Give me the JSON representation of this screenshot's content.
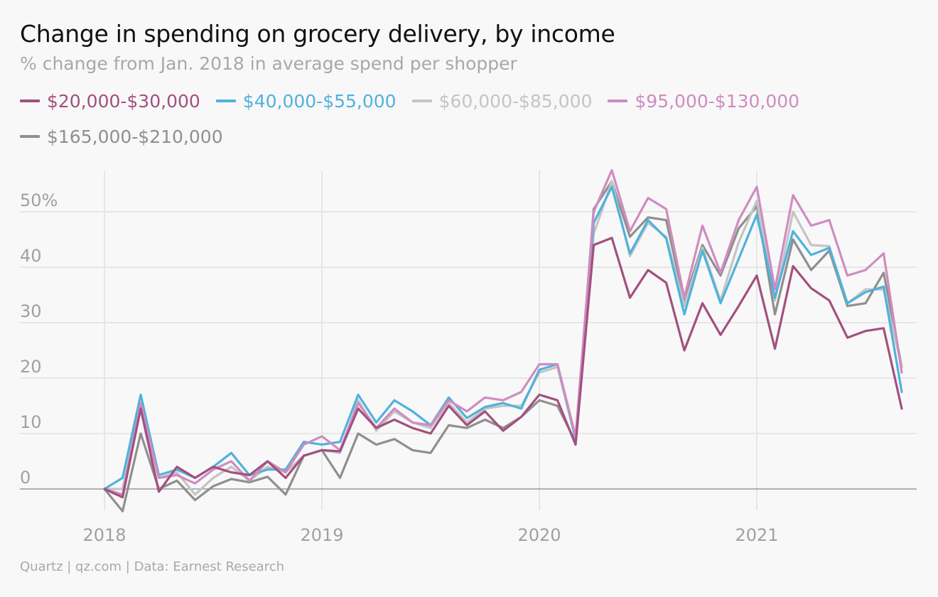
{
  "colors": {
    "s20_30": "#a2507f",
    "s40_55": "#4fb2dc",
    "s60_85": "#c4c4c4",
    "s95_130": "#cf8cc0",
    "s165_210": "#8f8f8f",
    "grid": "#e6e6e6",
    "zero_line": "#999999",
    "tick_text": "#a0a0a0"
  },
  "chart_data": {
    "type": "line",
    "title": "Change in spending on grocery delivery, by income",
    "subtitle": "% change from Jan. 2018 in average spend per shopper",
    "source": "Quartz | qz.com | Data: Earnest Research",
    "xlabel": "",
    "ylabel": "",
    "x": [
      "2018-01",
      "2018-02",
      "2018-03",
      "2018-04",
      "2018-05",
      "2018-06",
      "2018-07",
      "2018-08",
      "2018-09",
      "2018-10",
      "2018-11",
      "2018-12",
      "2019-01",
      "2019-02",
      "2019-03",
      "2019-04",
      "2019-05",
      "2019-06",
      "2019-07",
      "2019-08",
      "2019-09",
      "2019-10",
      "2019-11",
      "2019-12",
      "2020-01",
      "2020-02",
      "2020-03",
      "2020-04",
      "2020-05",
      "2020-06",
      "2020-07",
      "2020-08",
      "2020-09",
      "2020-10",
      "2020-11",
      "2020-12",
      "2021-01",
      "2021-02",
      "2021-03",
      "2021-04",
      "2021-05",
      "2021-06",
      "2021-07",
      "2021-08",
      "2021-09"
    ],
    "xticks": [
      "2018",
      "2019",
      "2020",
      "2021"
    ],
    "xlim": [
      "2018-01",
      "2021-10"
    ],
    "yticks": [
      "0",
      "10",
      "20",
      "30",
      "40",
      "50%"
    ],
    "ytick_values": [
      0,
      10,
      20,
      30,
      40,
      50
    ],
    "ylim": [
      -4,
      57
    ],
    "grid": true,
    "legend_position": "top",
    "series": [
      {
        "name": "$20,000-$30,000",
        "color_key": "s20_30",
        "values": [
          0,
          -1.5,
          14.5,
          -0.5,
          4,
          2,
          4,
          3,
          2.5,
          5,
          2,
          6,
          7,
          6.8,
          14.5,
          11,
          12.5,
          11,
          10,
          15,
          11.5,
          14,
          10.5,
          13,
          17,
          16,
          8,
          44,
          45.3,
          34.5,
          39.5,
          37.2,
          25,
          33.5,
          27.8,
          33,
          38.5,
          25.3,
          40.2,
          36.2,
          34,
          27.3,
          28.5,
          29,
          14.5
        ]
      },
      {
        "name": "$40,000-$55,000",
        "color_key": "s40_55",
        "values": [
          0,
          2,
          17,
          2.5,
          3.5,
          2,
          4,
          6.5,
          2.5,
          3.5,
          3.5,
          8.5,
          8,
          8.5,
          17,
          12,
          16,
          14,
          11.5,
          16.5,
          12.8,
          14.8,
          15.5,
          14.5,
          21.5,
          22.5,
          9,
          48,
          54.5,
          42.5,
          48.5,
          45.2,
          31.5,
          43,
          33.5,
          41.5,
          49.5,
          34.5,
          46.5,
          42.2,
          43.5,
          33.5,
          35.5,
          36.5,
          17.5
        ]
      },
      {
        "name": "$60,000-$85,000",
        "color_key": "s60_85",
        "values": [
          0,
          0,
          15.5,
          2,
          3,
          -1,
          2,
          4,
          1.5,
          4,
          3,
          6,
          7,
          6.5,
          16,
          10.5,
          14,
          12,
          11,
          15.5,
          12,
          14.5,
          15,
          15,
          21,
          22,
          9,
          46,
          55.5,
          42,
          48,
          45.5,
          33,
          43.5,
          34,
          44.5,
          52,
          34,
          50,
          44,
          43.8,
          33.5,
          36,
          36,
          22
        ]
      },
      {
        "name": "$95,000-$130,000",
        "color_key": "s95_130",
        "values": [
          0,
          -1,
          15.5,
          2,
          2.5,
          1,
          3.5,
          5,
          1.5,
          5,
          3,
          8,
          9.5,
          7,
          15.5,
          11,
          14.5,
          12,
          11.5,
          16,
          14,
          16.5,
          16,
          17.5,
          22.5,
          22.5,
          9.5,
          50,
          57.5,
          46.5,
          52.5,
          50.5,
          34.5,
          47.5,
          39,
          48.5,
          54.5,
          36,
          53,
          47.5,
          48.5,
          38.5,
          39.5,
          42.5,
          21
        ]
      },
      {
        "name": "$165,000-$210,000",
        "color_key": "s165_210",
        "values": [
          0,
          -4,
          10,
          0,
          1.5,
          -2,
          0.5,
          1.8,
          1.2,
          2.2,
          -1,
          6,
          7,
          2,
          10,
          8,
          9,
          7,
          6.5,
          11.5,
          11,
          12.5,
          11,
          13,
          16,
          15,
          8.5,
          50.5,
          55.5,
          45.5,
          49,
          48.5,
          33.8,
          44,
          38.5,
          47,
          51,
          31.5,
          45,
          39.5,
          43,
          33,
          33.5,
          39,
          22
        ]
      }
    ]
  }
}
